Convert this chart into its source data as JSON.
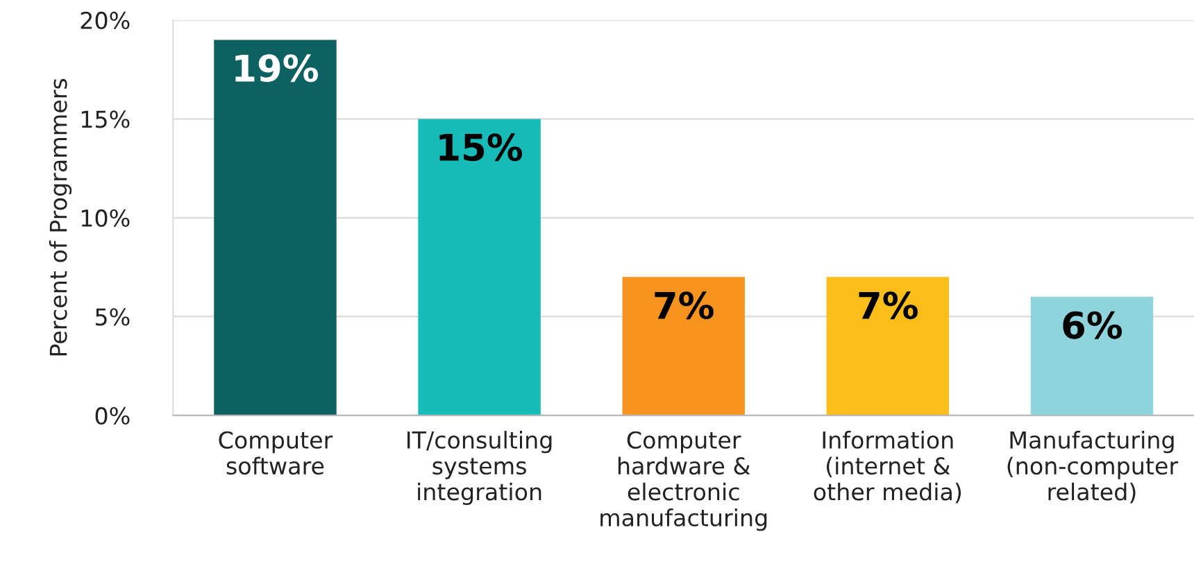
{
  "chart_data": {
    "type": "bar",
    "ylabel": "Percent of Programmers",
    "categories": [
      "Computer\nsoftware",
      "IT/consulting\nsystems\nintegration",
      "Computer\nhardware &\nelectronic\nmanufacturing",
      "Information\n(internet &\nother media)",
      "Manufacturing\n(non-computer\nrelated)"
    ],
    "values": [
      19,
      15,
      7,
      7,
      6
    ],
    "value_labels": [
      "19%",
      "15%",
      "7%",
      "7%",
      "6%"
    ],
    "colors": [
      "#0e6161",
      "#17bcb9",
      "#f7931f",
      "#fbbd19",
      "#8fd4dc"
    ],
    "ylim": [
      0,
      20
    ],
    "yticks": [
      {
        "value": 0,
        "label": "0%"
      },
      {
        "value": 5,
        "label": "5%"
      },
      {
        "value": 10,
        "label": "10%"
      },
      {
        "value": 15,
        "label": "15%"
      },
      {
        "value": 20,
        "label": "20%"
      }
    ],
    "grid": "y",
    "legend": false
  }
}
